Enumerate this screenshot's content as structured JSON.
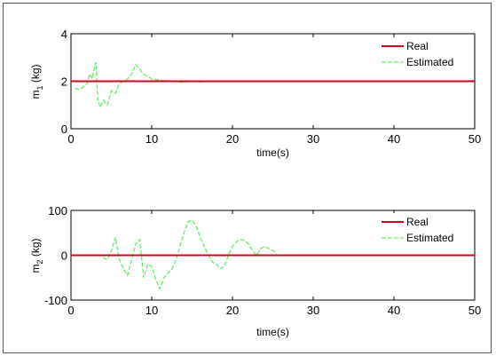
{
  "chart_data": [
    {
      "type": "line",
      "xlabel": "time(s)",
      "ylabel": "m",
      "ylabel_sub": "1",
      "ylabel_unit": " (kg)",
      "xlim": [
        0,
        50
      ],
      "ylim": [
        0,
        4
      ],
      "xticks": [
        0,
        10,
        20,
        30,
        40,
        50
      ],
      "yticks": [
        0,
        2,
        4
      ],
      "grid": false,
      "legend": "top-right",
      "series": [
        {
          "name": "Real",
          "color": "#d0021b",
          "style": "solid",
          "x": [
            0,
            50
          ],
          "y": [
            2,
            2
          ]
        },
        {
          "name": "Estimated",
          "color": "#66ee66",
          "style": "dashed",
          "x": [
            0.5,
            1.0,
            1.5,
            2.0,
            2.3,
            2.6,
            2.9,
            3.1,
            3.3,
            3.6,
            4.0,
            4.5,
            5.0,
            5.5,
            6.0,
            6.5,
            7.0,
            7.5,
            8.0,
            8.5,
            9.0,
            9.5,
            10.0,
            11.0,
            12.0,
            13.0,
            14.0,
            15.0,
            16.0,
            17.0,
            18.0,
            20.0,
            25.0,
            30.0,
            35.0,
            40.0,
            45.0,
            50.0
          ],
          "y": [
            1.7,
            1.65,
            1.75,
            1.9,
            2.3,
            2.1,
            2.6,
            2.8,
            1.3,
            0.9,
            1.2,
            1.0,
            1.6,
            1.5,
            1.9,
            2.0,
            2.1,
            2.3,
            2.7,
            2.5,
            2.3,
            2.2,
            2.1,
            2.05,
            2.0,
            1.98,
            1.95,
            2.02,
            1.97,
            2.0,
            2.0,
            2.0,
            2.0,
            2.0,
            2.0,
            2.0,
            2.0,
            2.0
          ]
        }
      ]
    },
    {
      "type": "line",
      "xlabel": "time(s)",
      "ylabel": "m",
      "ylabel_sub": "2",
      "ylabel_unit": " (kg)",
      "xlim": [
        0,
        50
      ],
      "ylim": [
        -100,
        100
      ],
      "xticks": [
        0,
        10,
        20,
        30,
        40,
        50
      ],
      "yticks": [
        -100,
        0,
        100
      ],
      "grid": false,
      "legend": "top-right",
      "series": [
        {
          "name": "Real",
          "color": "#d0021b",
          "style": "solid",
          "x": [
            0,
            50
          ],
          "y": [
            0,
            0
          ]
        },
        {
          "name": "Estimated",
          "color": "#66ee66",
          "style": "dashed",
          "x": [
            4.0,
            4.5,
            5.0,
            5.5,
            6.0,
            6.5,
            7.0,
            7.5,
            8.0,
            8.5,
            9.0,
            9.5,
            10.0,
            10.5,
            11.0,
            11.5,
            12.0,
            12.5,
            13.0,
            13.5,
            14.0,
            14.5,
            15.0,
            15.5,
            16.0,
            16.5,
            17.0,
            17.5,
            18.0,
            18.5,
            19.0,
            19.5,
            20.0,
            20.5,
            21.0,
            21.5,
            22.0,
            22.5,
            23.0,
            23.5,
            24.0,
            24.5,
            25.0,
            25.5
          ],
          "y": [
            -5,
            -10,
            10,
            40,
            -10,
            -30,
            -45,
            -10,
            25,
            35,
            -50,
            -20,
            -25,
            -55,
            -75,
            -50,
            -40,
            -30,
            -10,
            20,
            50,
            75,
            78,
            65,
            40,
            20,
            0,
            -15,
            -20,
            -30,
            -25,
            0,
            20,
            30,
            35,
            33,
            25,
            10,
            0,
            15,
            20,
            15,
            10,
            5
          ]
        }
      ]
    }
  ]
}
